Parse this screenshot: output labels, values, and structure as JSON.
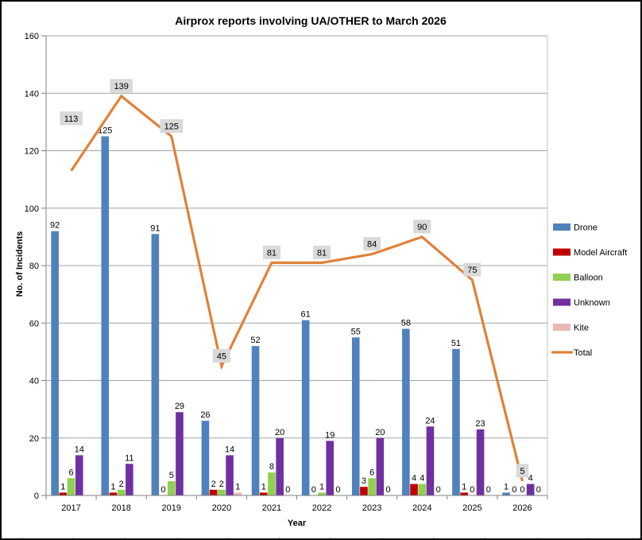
{
  "frame": {
    "background": "#FFFFFF",
    "border_color": "#000000"
  },
  "chart_data": {
    "type": "bar",
    "subtype": "grouped-bars-with-line-overlay",
    "title": "Airprox reports involving UA/OTHER to March 2026",
    "xlabel": "Year",
    "ylabel": "No. of Incidents",
    "ylim": [
      0,
      160
    ],
    "ytick_step": 20,
    "grid": true,
    "data_labels": true,
    "legend_position": "right",
    "categories": [
      "2017",
      "2018",
      "2019",
      "2020",
      "2021",
      "2022",
      "2023",
      "2024",
      "2025",
      "2026"
    ],
    "series": [
      {
        "name": "Drone",
        "chart_type": "bar",
        "color": "#4F81BD",
        "values": [
          92,
          125,
          91,
          26,
          52,
          61,
          55,
          58,
          51,
          1
        ]
      },
      {
        "name": "Model Aircraft",
        "chart_type": "bar",
        "color": "#C00000",
        "values": [
          1,
          1,
          0,
          2,
          1,
          0,
          3,
          4,
          1,
          0
        ]
      },
      {
        "name": "Balloon",
        "chart_type": "bar",
        "color": "#92D050",
        "values": [
          6,
          2,
          5,
          2,
          8,
          1,
          6,
          4,
          0,
          0
        ]
      },
      {
        "name": "Unknown",
        "chart_type": "bar",
        "color": "#7030A0",
        "values": [
          14,
          11,
          29,
          14,
          20,
          19,
          20,
          24,
          23,
          4
        ]
      },
      {
        "name": "Kite",
        "chart_type": "bar",
        "color": "#E8B9B7",
        "values": [
          null,
          null,
          null,
          1,
          0,
          0,
          0,
          0,
          0,
          0
        ]
      },
      {
        "name": "Total",
        "chart_type": "line",
        "color": "#E0813B",
        "label_bg": "#D9D9D9",
        "values": [
          113,
          139,
          125,
          45,
          81,
          81,
          84,
          90,
          75,
          5
        ]
      }
    ],
    "axis_color": "#808080",
    "grid_color": "#A3A3A3",
    "plot_right_border_color": "#C0C0C0",
    "sheet_tick_color": "#D9D9D9",
    "label_color": "#000000"
  }
}
